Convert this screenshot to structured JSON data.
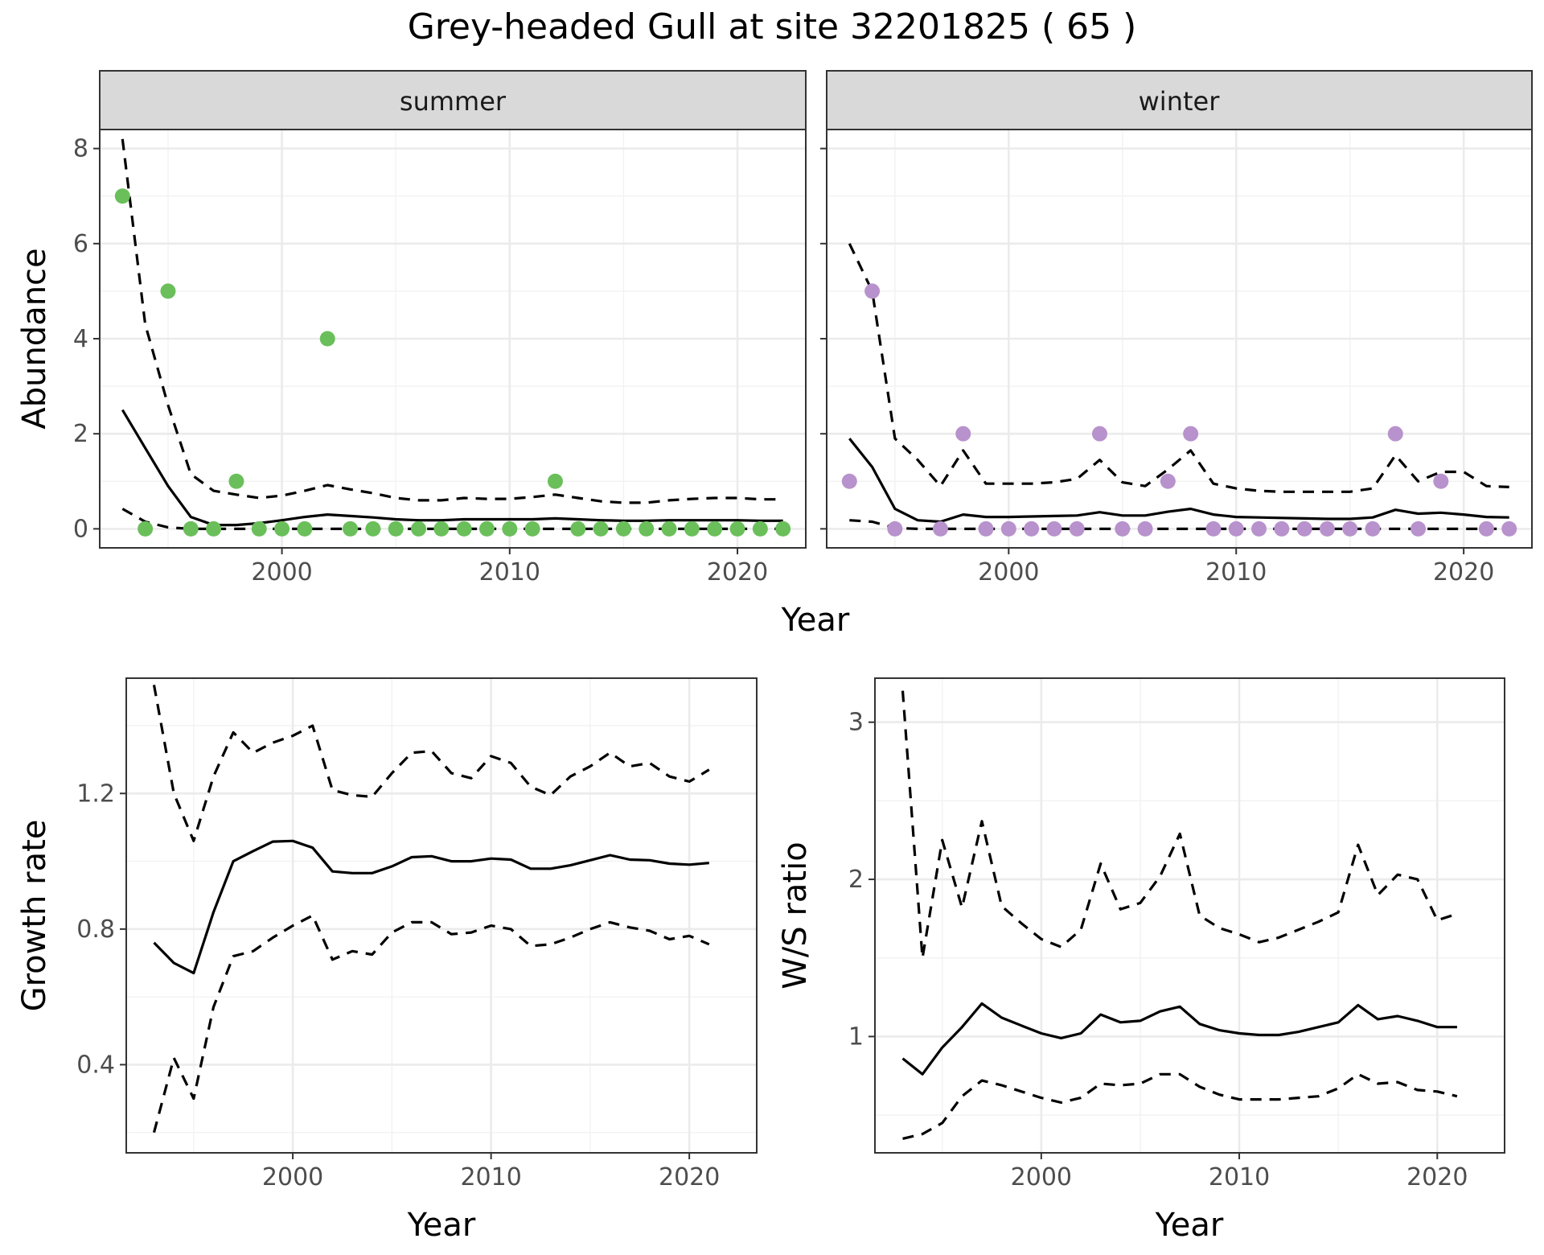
{
  "figure": {
    "title": "Grey-headed Gull at site 32201825 ( 65 )"
  },
  "colors": {
    "summer_points": "#6abf5a",
    "winter_points": "#b892cc",
    "lines": "#000000"
  },
  "chart_data": [
    {
      "type": "scatter",
      "facet": "summer",
      "xlabel": "Year",
      "ylabel": "Abundance",
      "xlim": [
        1992,
        2023
      ],
      "ylim": [
        -0.4,
        8.4
      ],
      "xticks": [
        2000,
        2010,
        2020
      ],
      "yticks": [
        0,
        2,
        4,
        6,
        8
      ],
      "grid": true,
      "point_color": "#6abf5a",
      "points": {
        "x": [
          1993,
          1994,
          1995,
          1996,
          1997,
          1998,
          1999,
          2000,
          2001,
          2002,
          2003,
          2004,
          2005,
          2006,
          2007,
          2008,
          2009,
          2010,
          2011,
          2012,
          2013,
          2014,
          2015,
          2016,
          2017,
          2018,
          2019,
          2020,
          2021,
          2022
        ],
        "y": [
          7,
          0,
          5,
          0,
          0,
          1,
          0,
          0,
          0,
          4,
          0,
          0,
          0,
          0,
          0,
          0,
          0,
          0,
          0,
          1,
          0,
          0,
          0,
          0,
          0,
          0,
          0,
          0,
          0,
          0
        ]
      },
      "fit": {
        "x": [
          1993,
          1994,
          1995,
          1996,
          1997,
          1998,
          1999,
          2000,
          2001,
          2002,
          2003,
          2004,
          2005,
          2006,
          2007,
          2008,
          2009,
          2010,
          2011,
          2012,
          2013,
          2014,
          2015,
          2016,
          2017,
          2018,
          2019,
          2020,
          2021,
          2022
        ],
        "y": [
          2.5,
          1.7,
          0.9,
          0.25,
          0.08,
          0.08,
          0.12,
          0.18,
          0.25,
          0.3,
          0.27,
          0.24,
          0.2,
          0.18,
          0.18,
          0.2,
          0.2,
          0.2,
          0.2,
          0.22,
          0.2,
          0.18,
          0.17,
          0.17,
          0.18,
          0.18,
          0.18,
          0.18,
          0.17,
          0.17
        ]
      },
      "upper": {
        "x": [
          1993,
          1994,
          1995,
          1996,
          1997,
          1998,
          1999,
          2000,
          2001,
          2002,
          2003,
          2004,
          2005,
          2006,
          2007,
          2008,
          2009,
          2010,
          2011,
          2012,
          2013,
          2014,
          2015,
          2016,
          2017,
          2018,
          2019,
          2020,
          2021,
          2022
        ],
        "y": [
          8.2,
          4.3,
          2.6,
          1.15,
          0.8,
          0.72,
          0.65,
          0.7,
          0.8,
          0.92,
          0.83,
          0.75,
          0.65,
          0.6,
          0.6,
          0.65,
          0.63,
          0.63,
          0.67,
          0.72,
          0.65,
          0.58,
          0.55,
          0.55,
          0.6,
          0.63,
          0.65,
          0.65,
          0.62,
          0.62
        ]
      },
      "lower": {
        "x": [
          1993,
          1994,
          1995,
          1996,
          1997,
          1998,
          1999,
          2000,
          2001,
          2002,
          2003,
          2004,
          2005,
          2006,
          2007,
          2008,
          2009,
          2010,
          2011,
          2012,
          2013,
          2014,
          2015,
          2016,
          2017,
          2018,
          2019,
          2020,
          2021,
          2022
        ],
        "y": [
          0.42,
          0.15,
          0.03,
          0,
          0,
          0,
          0,
          0,
          0,
          0,
          0,
          0,
          0,
          0,
          0,
          0,
          0,
          0,
          0,
          0,
          0,
          0,
          0,
          0,
          0,
          0,
          0,
          0,
          0,
          0
        ]
      }
    },
    {
      "type": "scatter",
      "facet": "winter",
      "xlabel": "Year",
      "ylabel": "Abundance",
      "xlim": [
        1992,
        2023
      ],
      "ylim": [
        -0.4,
        8.4
      ],
      "xticks": [
        2000,
        2010,
        2020
      ],
      "yticks": [
        0,
        2,
        4,
        6,
        8
      ],
      "grid": true,
      "point_color": "#b892cc",
      "points": {
        "x": [
          1993,
          1994,
          1995,
          1997,
          1998,
          1999,
          2000,
          2001,
          2002,
          2003,
          2004,
          2005,
          2006,
          2007,
          2008,
          2009,
          2010,
          2011,
          2012,
          2013,
          2014,
          2015,
          2016,
          2017,
          2018,
          2019,
          2021,
          2022
        ],
        "y": [
          1,
          5,
          0,
          0,
          2,
          0,
          0,
          0,
          0,
          0,
          2,
          0,
          0,
          1,
          2,
          0,
          0,
          0,
          0,
          0,
          0,
          0,
          0,
          2,
          0,
          1,
          0,
          0
        ]
      },
      "fit": {
        "x": [
          1993,
          1994,
          1995,
          1996,
          1997,
          1998,
          1999,
          2000,
          2001,
          2002,
          2003,
          2004,
          2005,
          2006,
          2007,
          2008,
          2009,
          2010,
          2011,
          2012,
          2013,
          2014,
          2015,
          2016,
          2017,
          2018,
          2019,
          2020,
          2021,
          2022
        ],
        "y": [
          1.9,
          1.3,
          0.42,
          0.18,
          0.15,
          0.3,
          0.25,
          0.25,
          0.26,
          0.27,
          0.28,
          0.35,
          0.28,
          0.28,
          0.36,
          0.42,
          0.3,
          0.25,
          0.24,
          0.23,
          0.22,
          0.21,
          0.21,
          0.24,
          0.4,
          0.32,
          0.34,
          0.3,
          0.25,
          0.24
        ]
      },
      "upper": {
        "x": [
          1993,
          1994,
          1995,
          1996,
          1997,
          1998,
          1999,
          2000,
          2001,
          2002,
          2003,
          2004,
          2005,
          2006,
          2007,
          2008,
          2009,
          2010,
          2011,
          2012,
          2013,
          2014,
          2015,
          2016,
          2017,
          2018,
          2019,
          2020,
          2021,
          2022
        ],
        "y": [
          6.0,
          5.0,
          1.9,
          1.45,
          0.9,
          1.65,
          0.95,
          0.95,
          0.95,
          0.98,
          1.05,
          1.45,
          0.98,
          0.9,
          1.25,
          1.65,
          0.95,
          0.85,
          0.8,
          0.78,
          0.78,
          0.78,
          0.78,
          0.85,
          1.55,
          1.0,
          1.2,
          1.2,
          0.9,
          0.88
        ]
      },
      "lower": {
        "x": [
          1993,
          1994,
          1995,
          1996,
          1997,
          1998,
          1999,
          2000,
          2001,
          2002,
          2003,
          2004,
          2005,
          2006,
          2007,
          2008,
          2009,
          2010,
          2011,
          2012,
          2013,
          2014,
          2015,
          2016,
          2017,
          2018,
          2019,
          2020,
          2021,
          2022
        ],
        "y": [
          0.18,
          0.15,
          0.02,
          0,
          0,
          0,
          0,
          0,
          0,
          0,
          0,
          0,
          0,
          0,
          0,
          0,
          0,
          0,
          0,
          0,
          0,
          0,
          0,
          0,
          0,
          0,
          0,
          0,
          0,
          0
        ]
      }
    },
    {
      "type": "line",
      "xlabel": "Year",
      "ylabel": "Growth rate",
      "xlim": [
        1991.6,
        2023.4
      ],
      "ylim": [
        0.14,
        1.54
      ],
      "xticks": [
        2000,
        2010,
        2020
      ],
      "yticks": [
        0.4,
        0.8,
        1.2
      ],
      "grid": true,
      "fit": {
        "x": [
          1993,
          1994,
          1995,
          1996,
          1997,
          1998,
          1999,
          2000,
          2001,
          2002,
          2003,
          2004,
          2005,
          2006,
          2007,
          2008,
          2009,
          2010,
          2011,
          2012,
          2013,
          2014,
          2015,
          2016,
          2017,
          2018,
          2019,
          2020,
          2021
        ],
        "y": [
          0.76,
          0.7,
          0.67,
          0.85,
          1.0,
          1.03,
          1.058,
          1.06,
          1.04,
          0.97,
          0.965,
          0.965,
          0.985,
          1.012,
          1.015,
          1.0,
          1.0,
          1.008,
          1.005,
          0.978,
          0.978,
          0.988,
          1.003,
          1.018,
          1.005,
          1.003,
          0.993,
          0.99,
          0.995
        ]
      },
      "upper": {
        "x": [
          1993,
          1994,
          1995,
          1996,
          1997,
          1998,
          1999,
          2000,
          2001,
          2002,
          2003,
          2004,
          2005,
          2006,
          2007,
          2008,
          2009,
          2010,
          2011,
          2012,
          2013,
          2014,
          2015,
          2016,
          2017,
          2018,
          2019,
          2020,
          2021
        ],
        "y": [
          1.52,
          1.2,
          1.06,
          1.25,
          1.38,
          1.32,
          1.35,
          1.37,
          1.4,
          1.21,
          1.195,
          1.19,
          1.26,
          1.32,
          1.325,
          1.26,
          1.245,
          1.31,
          1.29,
          1.22,
          1.195,
          1.25,
          1.28,
          1.32,
          1.28,
          1.29,
          1.25,
          1.235,
          1.27
        ]
      },
      "lower": {
        "x": [
          1993,
          1994,
          1995,
          1996,
          1997,
          1998,
          1999,
          2000,
          2001,
          2002,
          2003,
          2004,
          2005,
          2006,
          2007,
          2008,
          2009,
          2010,
          2011,
          2012,
          2013,
          2014,
          2015,
          2016,
          2017,
          2018,
          2019,
          2020,
          2021
        ],
        "y": [
          0.2,
          0.42,
          0.3,
          0.57,
          0.72,
          0.735,
          0.775,
          0.81,
          0.84,
          0.71,
          0.735,
          0.725,
          0.79,
          0.82,
          0.82,
          0.785,
          0.79,
          0.81,
          0.8,
          0.75,
          0.755,
          0.775,
          0.8,
          0.82,
          0.805,
          0.795,
          0.77,
          0.78,
          0.755
        ]
      }
    },
    {
      "type": "line",
      "xlabel": "Year",
      "ylabel": "W/S ratio",
      "xlim": [
        1991.6,
        2023.4
      ],
      "ylim": [
        0.26,
        3.28
      ],
      "xticks": [
        2000,
        2010,
        2020
      ],
      "yticks": [
        1,
        2,
        3
      ],
      "grid": true,
      "fit": {
        "x": [
          1993,
          1994,
          1995,
          1996,
          1997,
          1998,
          1999,
          2000,
          2001,
          2002,
          2003,
          2004,
          2005,
          2006,
          2007,
          2008,
          2009,
          2010,
          2011,
          2012,
          2013,
          2014,
          2015,
          2016,
          2017,
          2018,
          2019,
          2020,
          2021
        ],
        "y": [
          0.86,
          0.76,
          0.93,
          1.06,
          1.21,
          1.12,
          1.07,
          1.02,
          0.99,
          1.02,
          1.14,
          1.09,
          1.1,
          1.16,
          1.19,
          1.08,
          1.04,
          1.02,
          1.01,
          1.01,
          1.03,
          1.06,
          1.09,
          1.2,
          1.11,
          1.13,
          1.1,
          1.06,
          1.06
        ]
      },
      "upper": {
        "x": [
          1993,
          1994,
          1995,
          1996,
          1997,
          1998,
          1999,
          2000,
          2001,
          2002,
          2003,
          2004,
          2005,
          2006,
          2007,
          2008,
          2009,
          2010,
          2011,
          2012,
          2013,
          2014,
          2015,
          2016,
          2017,
          2018,
          2019,
          2020,
          2021
        ],
        "y": [
          3.2,
          1.5,
          2.25,
          1.82,
          2.37,
          1.83,
          1.72,
          1.62,
          1.57,
          1.68,
          2.1,
          1.81,
          1.85,
          2.02,
          2.29,
          1.77,
          1.69,
          1.65,
          1.6,
          1.63,
          1.68,
          1.73,
          1.79,
          2.22,
          1.9,
          2.03,
          2.0,
          1.74,
          1.78
        ]
      },
      "lower": {
        "x": [
          1993,
          1994,
          1995,
          1996,
          1997,
          1998,
          1999,
          2000,
          2001,
          2002,
          2003,
          2004,
          2005,
          2006,
          2007,
          2008,
          2009,
          2010,
          2011,
          2012,
          2013,
          2014,
          2015,
          2016,
          2017,
          2018,
          2019,
          2020,
          2021
        ],
        "y": [
          0.35,
          0.38,
          0.45,
          0.62,
          0.72,
          0.69,
          0.65,
          0.61,
          0.58,
          0.61,
          0.7,
          0.69,
          0.7,
          0.76,
          0.76,
          0.68,
          0.63,
          0.6,
          0.6,
          0.6,
          0.61,
          0.62,
          0.67,
          0.76,
          0.7,
          0.71,
          0.66,
          0.65,
          0.62
        ]
      }
    }
  ]
}
